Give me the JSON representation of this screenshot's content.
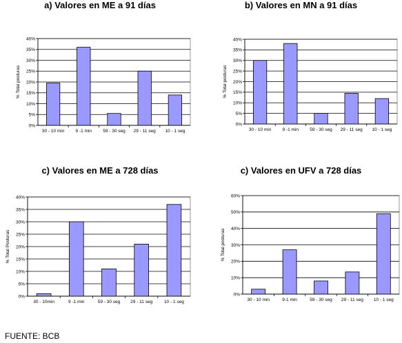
{
  "source": "FUENTE: BCB",
  "chart_data": [
    {
      "type": "bar",
      "title": "a) Valores en ME a 91 días",
      "ylabel": "% Total posturas",
      "categories": [
        "30 - 10 min",
        "9 -1 min",
        "59 - 30 seg",
        "29 - 11 seg",
        "10 - 1 seg"
      ],
      "values": [
        19.5,
        36,
        5.5,
        25,
        14
      ],
      "ylim": [
        0,
        40
      ],
      "yticks": [
        0,
        5,
        10,
        15,
        20,
        25,
        30,
        35,
        40
      ],
      "ytick_labels": [
        "0%",
        "5%",
        "10%",
        "15%",
        "20%",
        "25%",
        "30%",
        "35%",
        "40%"
      ],
      "grid": true,
      "bar_color": "#9999ff"
    },
    {
      "type": "bar",
      "title": "b) Valores en MN a 91 días",
      "ylabel": "% Total posturas",
      "categories": [
        "30 - 10 min",
        "9 -1 min",
        "59 - 30 seg",
        "29 - 11 seg",
        "10 - 1 seg"
      ],
      "values": [
        30,
        38,
        5,
        14.5,
        12
      ],
      "ylim": [
        0,
        40
      ],
      "yticks": [
        0,
        5,
        10,
        15,
        20,
        25,
        30,
        35,
        40
      ],
      "ytick_labels": [
        "0%",
        "5%",
        "10%",
        "15%",
        "20%",
        "25%",
        "30%",
        "35%",
        "40%"
      ],
      "grid": true,
      "bar_color": "#9999ff"
    },
    {
      "type": "bar",
      "title": "c) Valores en ME a 728 días",
      "ylabel": "% Total Posturas",
      "categories": [
        "30 - 10min",
        "9 -1 min",
        "59 - 30 seg",
        "29 - 11 seg",
        "10 - 1 seg"
      ],
      "values": [
        1,
        30,
        11,
        21,
        37
      ],
      "ylim": [
        0,
        40
      ],
      "yticks": [
        0,
        5,
        10,
        15,
        20,
        25,
        30,
        35,
        40
      ],
      "ytick_labels": [
        "0%",
        "5%",
        "10%",
        "15%",
        "20%",
        "25%",
        "30%",
        "35%",
        "40%"
      ],
      "grid": true,
      "bar_color": "#9999ff"
    },
    {
      "type": "bar",
      "title": "c) Valores en UFV a 728 días",
      "ylabel": "% Total posturas",
      "categories": [
        "30 - 10 min",
        "9-1 min",
        "59 - 30 seg",
        "29 - 11 seg",
        "10 - 1 seg"
      ],
      "values": [
        3,
        27,
        8,
        13.5,
        49
      ],
      "ylim": [
        0,
        60
      ],
      "yticks": [
        0,
        10,
        20,
        30,
        40,
        50,
        60
      ],
      "ytick_labels": [
        "0%",
        "10%",
        "20%",
        "30%",
        "40%",
        "50%",
        "60%"
      ],
      "grid": true,
      "bar_color": "#9999ff"
    }
  ]
}
